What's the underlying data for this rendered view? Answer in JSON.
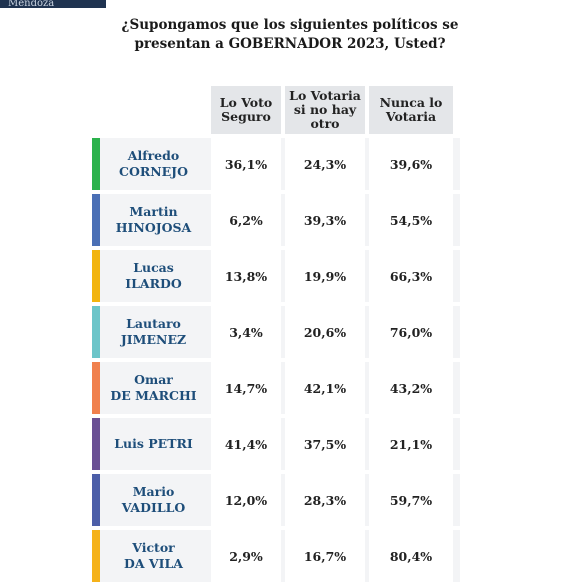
{
  "brand": "Mendoza",
  "question": {
    "line1": "¿Supongamos que los siguientes políticos se",
    "line2": "presentan a GOBERNADOR 2023, Usted?"
  },
  "chart_data": {
    "type": "table",
    "columns": [
      "Lo Voto Seguro",
      "Lo Votaria si no hay otro",
      "Nunca lo Votaria"
    ],
    "column_lines": [
      [
        "Lo Voto",
        "Seguro"
      ],
      [
        "Lo Votaria",
        "si no hay",
        "otro"
      ],
      [
        "Nunca lo",
        "Votaria"
      ]
    ],
    "rows": [
      {
        "name_lines": [
          "Alfredo",
          "CORNEJO"
        ],
        "color": "#2bb24c",
        "values": [
          "36,1%",
          "24,3%",
          "39,6%"
        ]
      },
      {
        "name_lines": [
          "Martin",
          "HINOJOSA"
        ],
        "color": "#4a6fb5",
        "values": [
          "6,2%",
          "39,3%",
          "54,5%"
        ]
      },
      {
        "name_lines": [
          "Lucas",
          "ILARDO"
        ],
        "color": "#f2b40f",
        "values": [
          "13,8%",
          "19,9%",
          "66,3%"
        ]
      },
      {
        "name_lines": [
          "Lautaro",
          "JIMENEZ"
        ],
        "color": "#6cc5c9",
        "values": [
          "3,4%",
          "20,6%",
          "76,0%"
        ]
      },
      {
        "name_lines": [
          "Omar",
          "DE MARCHI"
        ],
        "color": "#f0804d",
        "values": [
          "14,7%",
          "42,1%",
          "43,2%"
        ]
      },
      {
        "name_lines": [
          "Luis PETRI"
        ],
        "color": "#6a4f94",
        "values": [
          "41,4%",
          "37,5%",
          "21,1%"
        ]
      },
      {
        "name_lines": [
          "Mario",
          "VADILLO"
        ],
        "color": "#4c5ea8",
        "values": [
          "12,0%",
          "28,3%",
          "59,7%"
        ]
      },
      {
        "name_lines": [
          "Victor",
          "DA VILA"
        ],
        "color": "#f5b21a",
        "values": [
          "2,9%",
          "16,7%",
          "80,4%"
        ]
      }
    ]
  }
}
